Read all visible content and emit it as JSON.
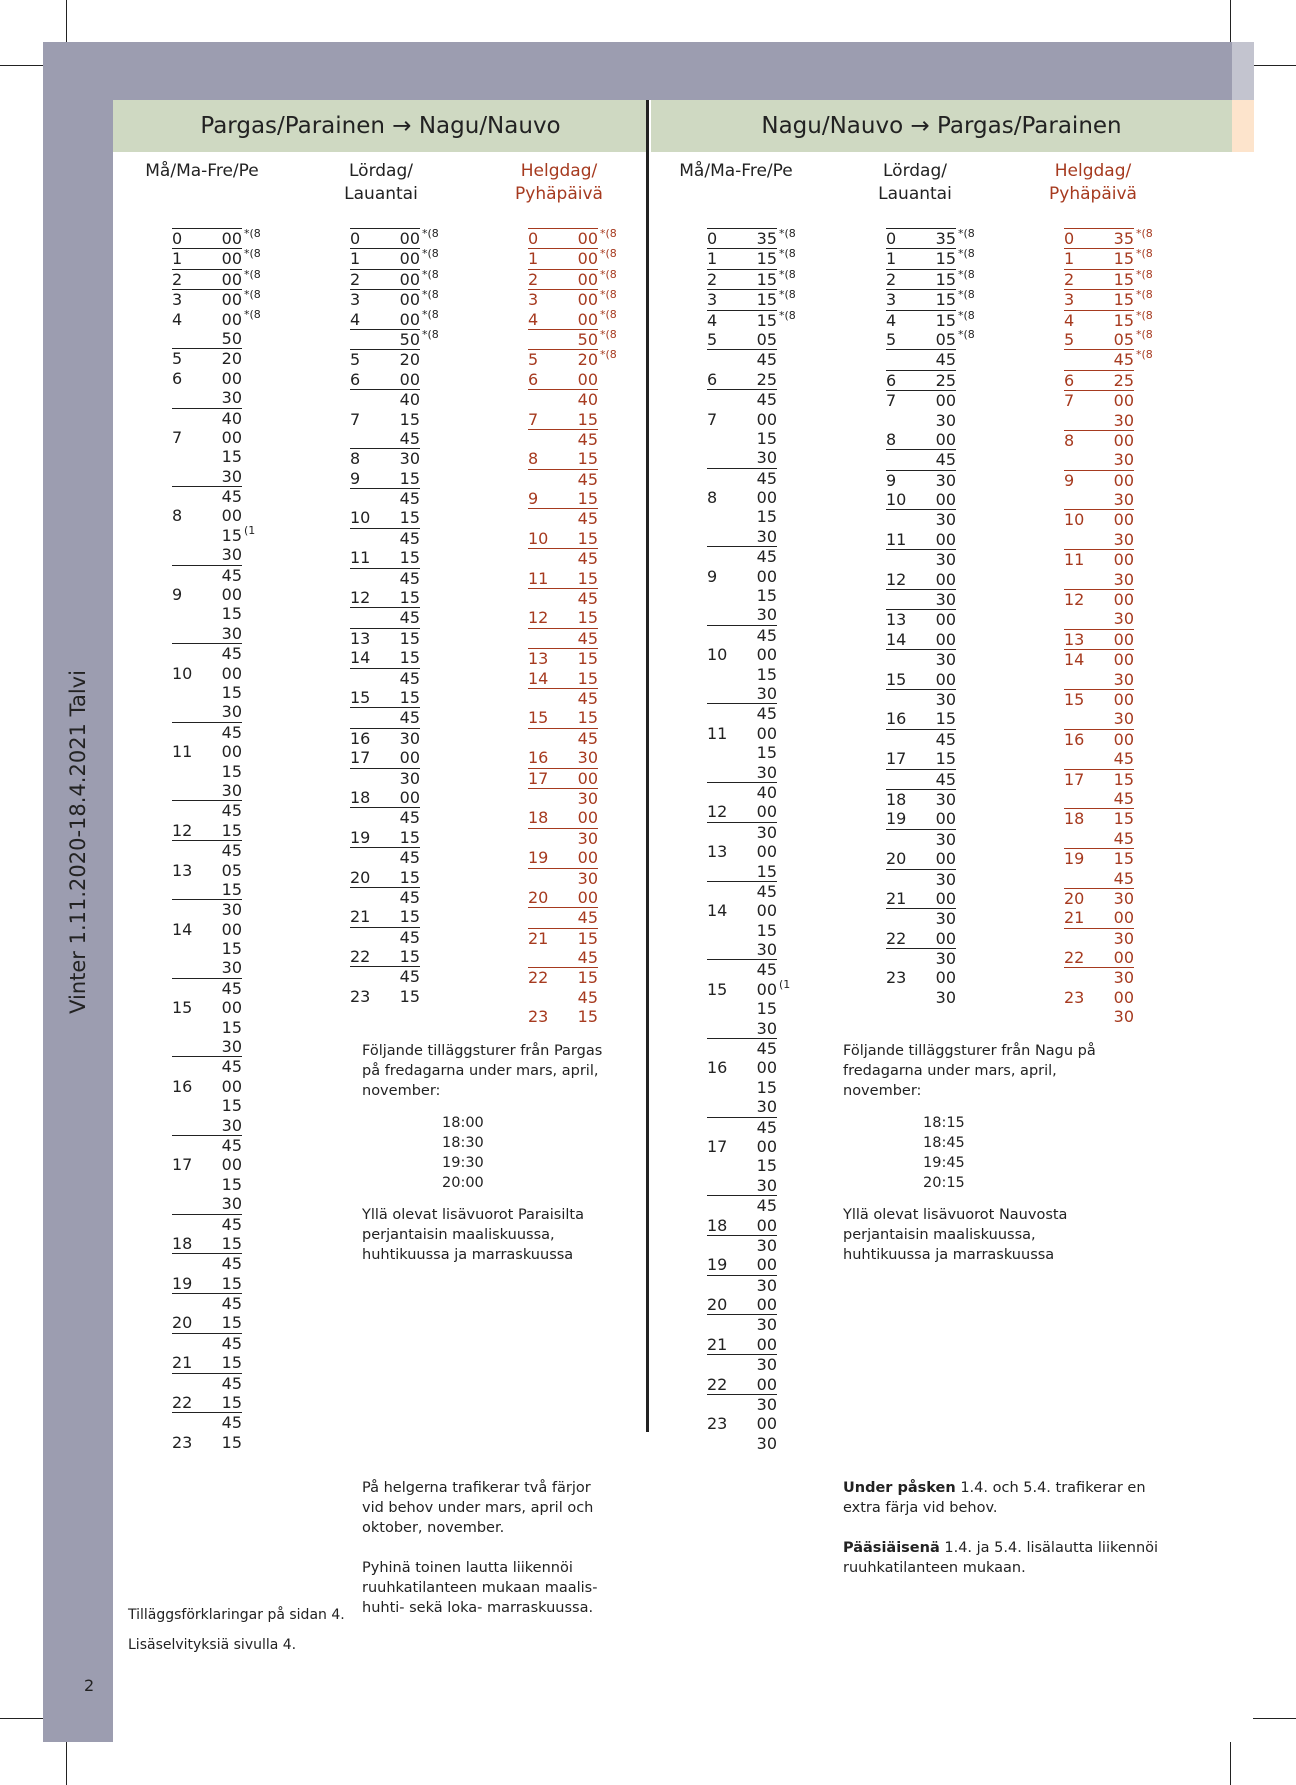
{
  "side_title": "Vinter 1.11.2020-18.4.2021 Talvi",
  "page_number": "2",
  "left_section": {
    "title": "Pargas/Parainen → Nagu/Nauvo",
    "col1": {
      "label1": "Må/Ma-Fre/Pe",
      "label2": ""
    },
    "col2": {
      "label1": "Lördag/",
      "label2": "Lauantai"
    },
    "col3": {
      "label1": "Helgdag/",
      "label2": "Pyhäpäivä"
    }
  },
  "right_section": {
    "title": "Nagu/Nauvo → Pargas/Parainen",
    "col1": {
      "label1": "Må/Ma-Fre/Pe",
      "label2": ""
    },
    "col2": {
      "label1": "Lördag/",
      "label2": "Lauantai"
    },
    "col3": {
      "label1": "Helgdag/",
      "label2": "Pyhäpäivä"
    }
  },
  "timetables": {
    "L1": [
      [
        "0",
        "00",
        "*(8"
      ],
      [
        "1",
        "00",
        "*(8"
      ],
      [
        "2",
        "00",
        "*(8"
      ],
      [
        "3",
        "00",
        "*(8"
      ],
      [
        "4",
        "00",
        "*(8"
      ],
      [
        "",
        "50",
        ""
      ],
      [
        "5",
        "20",
        ""
      ],
      [
        "6",
        "00",
        ""
      ],
      [
        "",
        "30",
        ""
      ],
      [
        "",
        "40",
        ""
      ],
      [
        "7",
        "00",
        ""
      ],
      [
        "",
        "15",
        ""
      ],
      [
        "",
        "30",
        ""
      ],
      [
        "",
        "45",
        ""
      ],
      [
        "8",
        "00",
        ""
      ],
      [
        "",
        "15",
        "(1"
      ],
      [
        "",
        "30",
        ""
      ],
      [
        "",
        "45",
        ""
      ],
      [
        "9",
        "00",
        ""
      ],
      [
        "",
        "15",
        ""
      ],
      [
        "",
        "30",
        ""
      ],
      [
        "",
        "45",
        ""
      ],
      [
        "10",
        "00",
        ""
      ],
      [
        "",
        "15",
        ""
      ],
      [
        "",
        "30",
        ""
      ],
      [
        "",
        "45",
        ""
      ],
      [
        "11",
        "00",
        ""
      ],
      [
        "",
        "15",
        ""
      ],
      [
        "",
        "30",
        ""
      ],
      [
        "",
        "45",
        ""
      ],
      [
        "12",
        "15",
        ""
      ],
      [
        "",
        "45",
        ""
      ],
      [
        "13",
        "05",
        ""
      ],
      [
        "",
        "15",
        ""
      ],
      [
        "",
        "30",
        ""
      ],
      [
        "14",
        "00",
        ""
      ],
      [
        "",
        "15",
        ""
      ],
      [
        "",
        "30",
        ""
      ],
      [
        "",
        "45",
        ""
      ],
      [
        "15",
        "00",
        ""
      ],
      [
        "",
        "15",
        ""
      ],
      [
        "",
        "30",
        ""
      ],
      [
        "",
        "45",
        ""
      ],
      [
        "16",
        "00",
        ""
      ],
      [
        "",
        "15",
        ""
      ],
      [
        "",
        "30",
        ""
      ],
      [
        "",
        "45",
        ""
      ],
      [
        "17",
        "00",
        ""
      ],
      [
        "",
        "15",
        ""
      ],
      [
        "",
        "30",
        ""
      ],
      [
        "",
        "45",
        ""
      ],
      [
        "18",
        "15",
        ""
      ],
      [
        "",
        "45",
        ""
      ],
      [
        "19",
        "15",
        ""
      ],
      [
        "",
        "45",
        ""
      ],
      [
        "20",
        "15",
        ""
      ],
      [
        "",
        "45",
        ""
      ],
      [
        "21",
        "15",
        ""
      ],
      [
        "",
        "45",
        ""
      ],
      [
        "22",
        "15",
        ""
      ],
      [
        "",
        "45",
        ""
      ],
      [
        "23",
        "15",
        ""
      ]
    ],
    "L2": [
      [
        "0",
        "00",
        "*(8"
      ],
      [
        "1",
        "00",
        "*(8"
      ],
      [
        "2",
        "00",
        "*(8"
      ],
      [
        "3",
        "00",
        "*(8"
      ],
      [
        "4",
        "00",
        "*(8"
      ],
      [
        "",
        "50",
        "*(8"
      ],
      [
        "5",
        "20",
        ""
      ],
      [
        "6",
        "00",
        ""
      ],
      [
        "",
        "40",
        ""
      ],
      [
        "7",
        "15",
        ""
      ],
      [
        "",
        "45",
        ""
      ],
      [
        "8",
        "30",
        ""
      ],
      [
        "9",
        "15",
        ""
      ],
      [
        "",
        "45",
        ""
      ],
      [
        "10",
        "15",
        ""
      ],
      [
        "",
        "45",
        ""
      ],
      [
        "11",
        "15",
        ""
      ],
      [
        "",
        "45",
        ""
      ],
      [
        "12",
        "15",
        ""
      ],
      [
        "",
        "45",
        ""
      ],
      [
        "13",
        "15",
        ""
      ],
      [
        "14",
        "15",
        ""
      ],
      [
        "",
        "45",
        ""
      ],
      [
        "15",
        "15",
        ""
      ],
      [
        "",
        "45",
        ""
      ],
      [
        "16",
        "30",
        ""
      ],
      [
        "17",
        "00",
        ""
      ],
      [
        "",
        "30",
        ""
      ],
      [
        "18",
        "00",
        ""
      ],
      [
        "",
        "45",
        ""
      ],
      [
        "19",
        "15",
        ""
      ],
      [
        "",
        "45",
        ""
      ],
      [
        "20",
        "15",
        ""
      ],
      [
        "",
        "45",
        ""
      ],
      [
        "21",
        "15",
        ""
      ],
      [
        "",
        "45",
        ""
      ],
      [
        "22",
        "15",
        ""
      ],
      [
        "",
        "45",
        ""
      ],
      [
        "23",
        "15",
        ""
      ]
    ],
    "L3": [
      [
        "0",
        "00",
        "*(8"
      ],
      [
        "1",
        "00",
        "*(8"
      ],
      [
        "2",
        "00",
        "*(8"
      ],
      [
        "3",
        "00",
        "*(8"
      ],
      [
        "4",
        "00",
        "*(8"
      ],
      [
        "",
        "50",
        "*(8"
      ],
      [
        "5",
        "20",
        "*(8"
      ],
      [
        "6",
        "00",
        ""
      ],
      [
        "",
        "40",
        ""
      ],
      [
        "7",
        "15",
        ""
      ],
      [
        "",
        "45",
        ""
      ],
      [
        "8",
        "15",
        ""
      ],
      [
        "",
        "45",
        ""
      ],
      [
        "9",
        "15",
        ""
      ],
      [
        "",
        "45",
        ""
      ],
      [
        "10",
        "15",
        ""
      ],
      [
        "",
        "45",
        ""
      ],
      [
        "11",
        "15",
        ""
      ],
      [
        "",
        "45",
        ""
      ],
      [
        "12",
        "15",
        ""
      ],
      [
        "",
        "45",
        ""
      ],
      [
        "13",
        "15",
        ""
      ],
      [
        "14",
        "15",
        ""
      ],
      [
        "",
        "45",
        ""
      ],
      [
        "15",
        "15",
        ""
      ],
      [
        "",
        "45",
        ""
      ],
      [
        "16",
        "30",
        ""
      ],
      [
        "17",
        "00",
        ""
      ],
      [
        "",
        "30",
        ""
      ],
      [
        "18",
        "00",
        ""
      ],
      [
        "",
        "30",
        ""
      ],
      [
        "19",
        "00",
        ""
      ],
      [
        "",
        "30",
        ""
      ],
      [
        "20",
        "00",
        ""
      ],
      [
        "",
        "45",
        ""
      ],
      [
        "21",
        "15",
        ""
      ],
      [
        "",
        "45",
        ""
      ],
      [
        "22",
        "15",
        ""
      ],
      [
        "",
        "45",
        ""
      ],
      [
        "23",
        "15",
        ""
      ]
    ],
    "R1": [
      [
        "0",
        "35",
        "*(8"
      ],
      [
        "1",
        "15",
        "*(8"
      ],
      [
        "2",
        "15",
        "*(8"
      ],
      [
        "3",
        "15",
        "*(8"
      ],
      [
        "4",
        "15",
        "*(8"
      ],
      [
        "5",
        "05",
        ""
      ],
      [
        "",
        "45",
        ""
      ],
      [
        "6",
        "25",
        ""
      ],
      [
        "",
        "45",
        ""
      ],
      [
        "7",
        "00",
        ""
      ],
      [
        "",
        "15",
        ""
      ],
      [
        "",
        "30",
        ""
      ],
      [
        "",
        "45",
        ""
      ],
      [
        "8",
        "00",
        ""
      ],
      [
        "",
        "15",
        ""
      ],
      [
        "",
        "30",
        ""
      ],
      [
        "",
        "45",
        ""
      ],
      [
        "9",
        "00",
        ""
      ],
      [
        "",
        "15",
        ""
      ],
      [
        "",
        "30",
        ""
      ],
      [
        "",
        "45",
        ""
      ],
      [
        "10",
        "00",
        ""
      ],
      [
        "",
        "15",
        ""
      ],
      [
        "",
        "30",
        ""
      ],
      [
        "",
        "45",
        ""
      ],
      [
        "11",
        "00",
        ""
      ],
      [
        "",
        "15",
        ""
      ],
      [
        "",
        "30",
        ""
      ],
      [
        "",
        "40",
        ""
      ],
      [
        "12",
        "00",
        ""
      ],
      [
        "",
        "30",
        ""
      ],
      [
        "13",
        "00",
        ""
      ],
      [
        "",
        "15",
        ""
      ],
      [
        "",
        "45",
        ""
      ],
      [
        "14",
        "00",
        ""
      ],
      [
        "",
        "15",
        ""
      ],
      [
        "",
        "30",
        ""
      ],
      [
        "",
        "45",
        ""
      ],
      [
        "15",
        "00",
        "(1"
      ],
      [
        "",
        "15",
        ""
      ],
      [
        "",
        "30",
        ""
      ],
      [
        "",
        "45",
        ""
      ],
      [
        "16",
        "00",
        ""
      ],
      [
        "",
        "15",
        ""
      ],
      [
        "",
        "30",
        ""
      ],
      [
        "",
        "45",
        ""
      ],
      [
        "17",
        "00",
        ""
      ],
      [
        "",
        "15",
        ""
      ],
      [
        "",
        "30",
        ""
      ],
      [
        "",
        "45",
        ""
      ],
      [
        "18",
        "00",
        ""
      ],
      [
        "",
        "30",
        ""
      ],
      [
        "19",
        "00",
        ""
      ],
      [
        "",
        "30",
        ""
      ],
      [
        "20",
        "00",
        ""
      ],
      [
        "",
        "30",
        ""
      ],
      [
        "21",
        "00",
        ""
      ],
      [
        "",
        "30",
        ""
      ],
      [
        "22",
        "00",
        ""
      ],
      [
        "",
        "30",
        ""
      ],
      [
        "23",
        "00",
        ""
      ],
      [
        "",
        "30",
        ""
      ]
    ],
    "R2": [
      [
        "0",
        "35",
        "*(8"
      ],
      [
        "1",
        "15",
        "*(8"
      ],
      [
        "2",
        "15",
        "*(8"
      ],
      [
        "3",
        "15",
        "*(8"
      ],
      [
        "4",
        "15",
        "*(8"
      ],
      [
        "5",
        "05",
        "*(8"
      ],
      [
        "",
        "45",
        ""
      ],
      [
        "6",
        "25",
        ""
      ],
      [
        "7",
        "00",
        ""
      ],
      [
        "",
        "30",
        ""
      ],
      [
        "8",
        "00",
        ""
      ],
      [
        "",
        "45",
        ""
      ],
      [
        "9",
        "30",
        ""
      ],
      [
        "10",
        "00",
        ""
      ],
      [
        "",
        "30",
        ""
      ],
      [
        "11",
        "00",
        ""
      ],
      [
        "",
        "30",
        ""
      ],
      [
        "12",
        "00",
        ""
      ],
      [
        "",
        "30",
        ""
      ],
      [
        "13",
        "00",
        ""
      ],
      [
        "14",
        "00",
        ""
      ],
      [
        "",
        "30",
        ""
      ],
      [
        "15",
        "00",
        ""
      ],
      [
        "",
        "30",
        ""
      ],
      [
        "16",
        "15",
        ""
      ],
      [
        "",
        "45",
        ""
      ],
      [
        "17",
        "15",
        ""
      ],
      [
        "",
        "45",
        ""
      ],
      [
        "18",
        "30",
        ""
      ],
      [
        "19",
        "00",
        ""
      ],
      [
        "",
        "30",
        ""
      ],
      [
        "20",
        "00",
        ""
      ],
      [
        "",
        "30",
        ""
      ],
      [
        "21",
        "00",
        ""
      ],
      [
        "",
        "30",
        ""
      ],
      [
        "22",
        "00",
        ""
      ],
      [
        "",
        "30",
        ""
      ],
      [
        "23",
        "00",
        ""
      ],
      [
        "",
        "30",
        ""
      ]
    ],
    "R3": [
      [
        "0",
        "35",
        "*(8"
      ],
      [
        "1",
        "15",
        "*(8"
      ],
      [
        "2",
        "15",
        "*(8"
      ],
      [
        "3",
        "15",
        "*(8"
      ],
      [
        "4",
        "15",
        "*(8"
      ],
      [
        "5",
        "05",
        "*(8"
      ],
      [
        "",
        "45",
        "*(8"
      ],
      [
        "6",
        "25",
        ""
      ],
      [
        "7",
        "00",
        ""
      ],
      [
        "",
        "30",
        ""
      ],
      [
        "8",
        "00",
        ""
      ],
      [
        "",
        "30",
        ""
      ],
      [
        "9",
        "00",
        ""
      ],
      [
        "",
        "30",
        ""
      ],
      [
        "10",
        "00",
        ""
      ],
      [
        "",
        "30",
        ""
      ],
      [
        "11",
        "00",
        ""
      ],
      [
        "",
        "30",
        ""
      ],
      [
        "12",
        "00",
        ""
      ],
      [
        "",
        "30",
        ""
      ],
      [
        "13",
        "00",
        ""
      ],
      [
        "14",
        "00",
        ""
      ],
      [
        "",
        "30",
        ""
      ],
      [
        "15",
        "00",
        ""
      ],
      [
        "",
        "30",
        ""
      ],
      [
        "16",
        "00",
        ""
      ],
      [
        "",
        "45",
        ""
      ],
      [
        "17",
        "15",
        ""
      ],
      [
        "",
        "45",
        ""
      ],
      [
        "18",
        "15",
        ""
      ],
      [
        "",
        "45",
        ""
      ],
      [
        "19",
        "15",
        ""
      ],
      [
        "",
        "45",
        ""
      ],
      [
        "20",
        "30",
        ""
      ],
      [
        "21",
        "00",
        ""
      ],
      [
        "",
        "30",
        ""
      ],
      [
        "22",
        "00",
        ""
      ],
      [
        "",
        "30",
        ""
      ],
      [
        "23",
        "00",
        ""
      ],
      [
        "",
        "30",
        ""
      ]
    ]
  },
  "underlines": {
    "L1": [
      0,
      1,
      2,
      3,
      6,
      9,
      13,
      17,
      21,
      25,
      29,
      31,
      34,
      38,
      42,
      46,
      50,
      52,
      54,
      56,
      58,
      60
    ],
    "L2": [
      0,
      1,
      2,
      3,
      5,
      6,
      8,
      11,
      13,
      15,
      17,
      19,
      20,
      22,
      24,
      25,
      27,
      29,
      31,
      33,
      35,
      37
    ],
    "L3": [
      0,
      1,
      2,
      3,
      5,
      6,
      8,
      10,
      12,
      14,
      16,
      18,
      20,
      21,
      23,
      25,
      27,
      28,
      30,
      32,
      34,
      35,
      37
    ],
    "R1": [
      0,
      1,
      2,
      3,
      4,
      6,
      8,
      12,
      16,
      20,
      24,
      28,
      30,
      33,
      37,
      41,
      45,
      49,
      51,
      53,
      55,
      57,
      59
    ],
    "R2": [
      0,
      1,
      2,
      3,
      4,
      6,
      7,
      8,
      11,
      12,
      14,
      16,
      18,
      19,
      21,
      23,
      25,
      27,
      28,
      30,
      32,
      34,
      36
    ],
    "R3": [
      0,
      1,
      2,
      3,
      4,
      6,
      7,
      8,
      10,
      12,
      14,
      16,
      18,
      20,
      21,
      23,
      25,
      27,
      29,
      31,
      33,
      35,
      37
    ]
  },
  "extra_left": {
    "intro": "Följande tilläggsturer från Pargas på fredagarna under mars, april, november:",
    "times": [
      "18:00",
      "18:30",
      "19:30",
      "20:00"
    ],
    "fi_note": "Yllä olevat lisävuorot Paraisilta perjantaisin maaliskuussa, huhtikuussa ja marraskuussa"
  },
  "extra_right": {
    "intro": "Följande tilläggsturer från Nagu på fredagarna under mars, april, november:",
    "times": [
      "18:15",
      "18:45",
      "19:45",
      "20:15"
    ],
    "fi_note": "Yllä olevat lisävuorot Nauvosta perjantaisin maaliskuussa, huhtikuussa ja marraskuussa"
  },
  "footer_left": {
    "sv": "På helgerna trafikerar två färjor vid behov under mars, april och oktober, november.",
    "fi": "Pyhinä toinen lautta liikennöi ruuhkatilanteen mukaan maalis- huhti- sekä loka- marraskuussa."
  },
  "footer_right": {
    "sv_bold": "Under påsken",
    "sv_rest": " 1.4. och 5.4. trafikerar en extra färja vid behov.",
    "fi_bold": "Pääsiäisenä",
    "fi_rest": " 1.4. ja 5.4. lisälautta liikennöi ruuhkatilanteen mukaan."
  },
  "notes": {
    "sv": "Tilläggsförklaringar på sidan 4.",
    "fi": "Lisäselvityksiä sivulla 4."
  }
}
